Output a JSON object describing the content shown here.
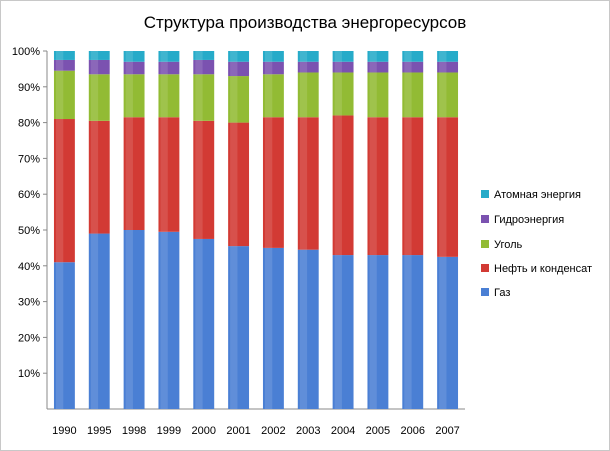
{
  "chart_data": {
    "type": "bar",
    "stacked": true,
    "normalized": true,
    "title": "Структура производства энергоресурсов",
    "categories": [
      "1990",
      "1995",
      "1998",
      "1999",
      "2000",
      "2001",
      "2002",
      "2003",
      "2004",
      "2005",
      "2006",
      "2007"
    ],
    "ylim": [
      0,
      100
    ],
    "y_ticks": [
      "10%",
      "20%",
      "30%",
      "40%",
      "50%",
      "60%",
      "70%",
      "80%",
      "90%",
      "100%"
    ],
    "grid": false,
    "legend_position": "right",
    "series": [
      {
        "name": "Газ",
        "color": "#4a7fd4",
        "values": [
          41,
          49,
          50,
          49.5,
          47.5,
          45.5,
          45,
          44.5,
          43,
          43,
          43,
          42.5
        ]
      },
      {
        "name": "Нефть и конденсат",
        "color": "#d23a34",
        "values": [
          40,
          31.5,
          31.5,
          32,
          33,
          34.5,
          36.5,
          37,
          39,
          38.5,
          38.5,
          39
        ]
      },
      {
        "name": "Уголь",
        "color": "#92bb34",
        "values": [
          13.5,
          13,
          12,
          12,
          13,
          13,
          12,
          12.5,
          12,
          12.5,
          12.5,
          12.5
        ]
      },
      {
        "name": "Гидроэнергия",
        "color": "#7b52b0",
        "values": [
          3,
          4,
          3.5,
          3.5,
          4,
          4,
          3.5,
          3,
          3,
          3,
          3,
          3
        ]
      },
      {
        "name": "Атомная энергия",
        "color": "#26abc9",
        "values": [
          2.5,
          2.5,
          3,
          3,
          2.5,
          3,
          3,
          3,
          3,
          3,
          3,
          3
        ]
      }
    ],
    "legend_order": [
      "Атомная энергия",
      "Гидроэнергия",
      "Уголь",
      "Нефть и конденсат",
      "Газ"
    ]
  }
}
